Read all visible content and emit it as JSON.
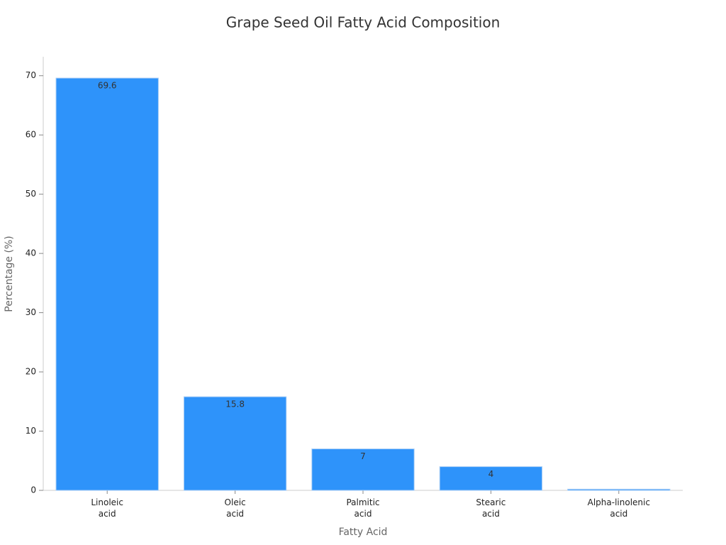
{
  "chart_data": {
    "type": "bar",
    "title": "Grape Seed Oil Fatty Acid Composition",
    "x_label": "Fatty Acid",
    "y_label": "Percentage (%)",
    "categories": [
      "Linoleic\nacid",
      "Oleic\nacid",
      "Palmitic\nacid",
      "Stearic\nacid",
      "Alpha-linolenic\nacid"
    ],
    "values": [
      69.6,
      15.8,
      7,
      4,
      0.2
    ],
    "value_labels": [
      "69.6",
      "15.8",
      "7",
      "4",
      null
    ],
    "color": "#2e93fa",
    "ylim": [
      0,
      73.2
    ],
    "yticks": [
      0,
      10,
      20,
      30,
      40,
      50,
      60,
      70
    ],
    "grid": false
  }
}
